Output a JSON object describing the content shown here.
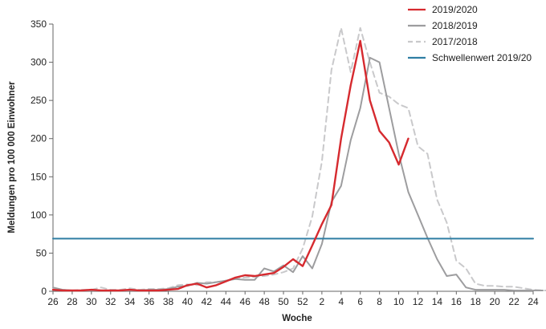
{
  "chart_data": {
    "type": "line",
    "xlabel": "Woche",
    "ylabel": "Meldungen pro 100 000 Einwohner",
    "ylim": [
      0,
      350
    ],
    "yticks": [
      0,
      50,
      100,
      150,
      200,
      250,
      300,
      350
    ],
    "x_tick_labels": [
      "26",
      "28",
      "30",
      "32",
      "34",
      "36",
      "38",
      "40",
      "42",
      "44",
      "46",
      "48",
      "50",
      "52",
      "2",
      "4",
      "6",
      "8",
      "10",
      "12",
      "14",
      "16",
      "18",
      "20",
      "22",
      "24"
    ],
    "legend_position": "top-right",
    "grid": false,
    "series": [
      {
        "name": "2019/2020",
        "color": "#d62a2f",
        "style": "solid",
        "values": [
          2,
          1,
          1,
          1,
          2,
          1,
          1,
          1,
          2,
          1,
          1,
          1,
          2,
          3,
          8,
          10,
          5,
          8,
          13,
          18,
          21,
          20,
          22,
          24,
          32,
          42,
          33,
          60,
          88,
          113,
          200,
          270,
          328,
          250,
          210,
          195,
          166,
          200
        ]
      },
      {
        "name": "2018/2019",
        "color": "#9d9d9f",
        "style": "solid",
        "values": [
          5,
          2,
          1,
          1,
          1,
          1,
          1,
          1,
          1,
          1,
          2,
          2,
          3,
          6,
          7,
          11,
          10,
          12,
          14,
          16,
          15,
          15,
          30,
          26,
          34,
          25,
          46,
          30,
          62,
          117,
          138,
          198,
          240,
          306,
          300,
          240,
          180,
          130,
          100,
          70,
          42,
          20,
          22,
          5,
          2,
          2,
          2,
          2,
          1,
          1,
          1,
          1
        ]
      },
      {
        "name": "2017/2018",
        "color": "#c9c9cb",
        "style": "dashed",
        "values": [
          3,
          2,
          1,
          2,
          2,
          5,
          2,
          2,
          4,
          2,
          3,
          3,
          4,
          8,
          9,
          8,
          12,
          12,
          14,
          17,
          18,
          19,
          20,
          22,
          25,
          30,
          56,
          98,
          170,
          290,
          345,
          287,
          345,
          300,
          260,
          255,
          245,
          240,
          190,
          180,
          120,
          90,
          40,
          30,
          10,
          7,
          7,
          6,
          6,
          4,
          2,
          1,
          1
        ]
      },
      {
        "name": "Schwellenwert 2019/20",
        "color": "#2f7ea3",
        "style": "solid",
        "constant": 69
      }
    ]
  }
}
